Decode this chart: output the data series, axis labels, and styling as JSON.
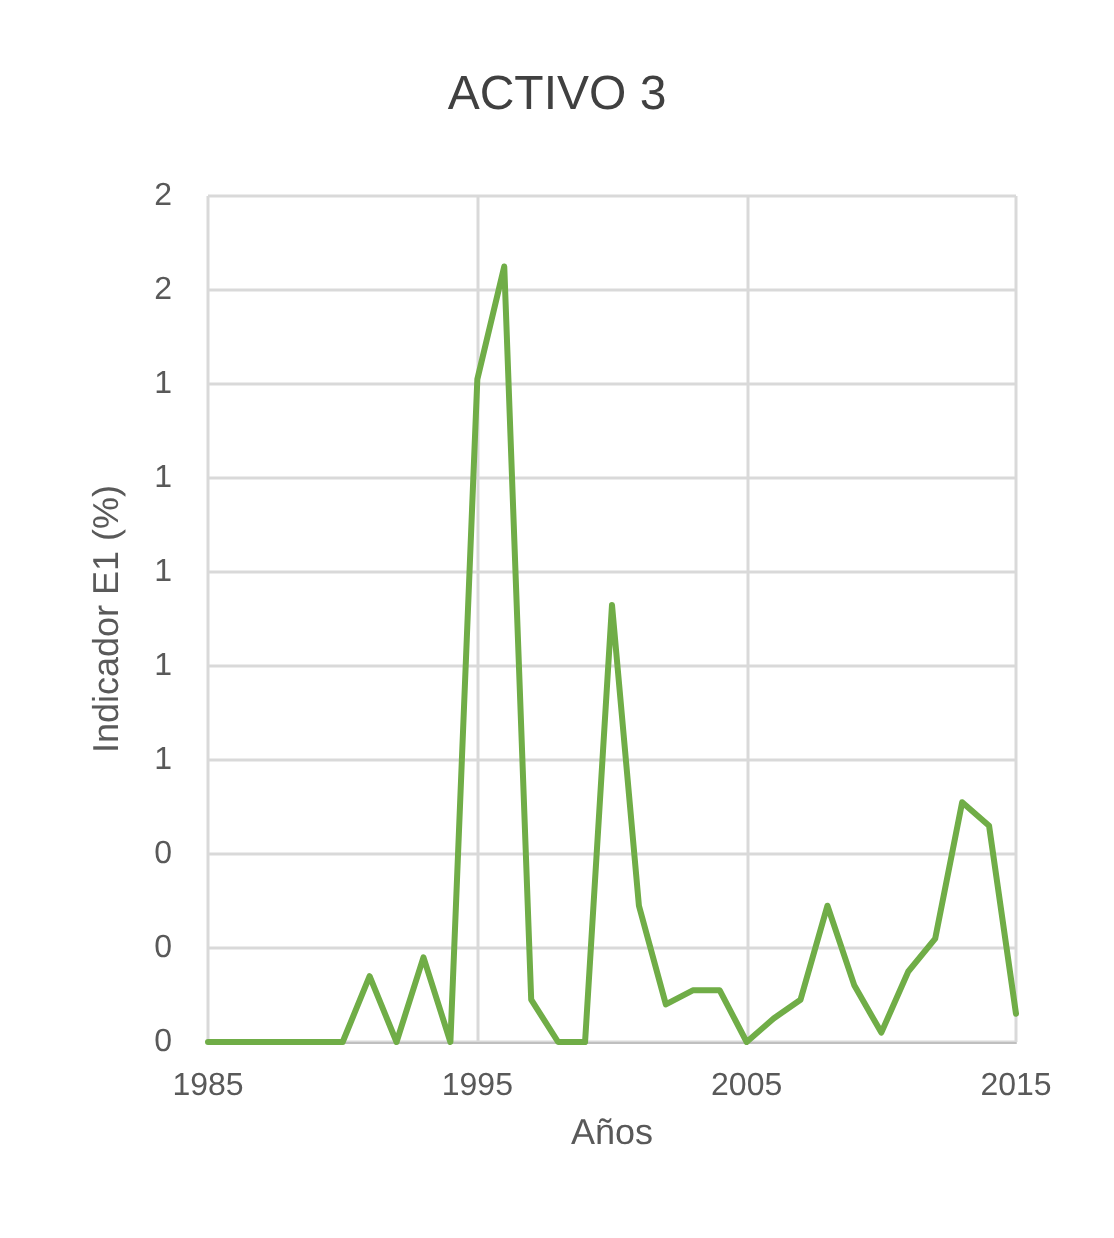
{
  "chart_data": {
    "type": "line",
    "title": "ACTIVO 3",
    "xlabel": "Años",
    "ylabel": "Indicador E1 (%)",
    "x": [
      1985,
      1986,
      1987,
      1988,
      1989,
      1990,
      1991,
      1992,
      1993,
      1994,
      1995,
      1996,
      1997,
      1998,
      1999,
      2000,
      2001,
      2002,
      2003,
      2004,
      2005,
      2006,
      2007,
      2008,
      2009,
      2010,
      2011,
      2012,
      2013,
      2014,
      2015
    ],
    "series": [
      {
        "color": "#70ad47",
        "values": [
          0,
          0,
          0,
          0,
          0,
          0,
          0.14,
          0,
          0.18,
          0,
          1.41,
          1.65,
          0.09,
          0,
          0,
          0.93,
          0.29,
          0.08,
          0.11,
          0.11,
          0,
          0.05,
          0.09,
          0.29,
          0.12,
          0.02,
          0.15,
          0.22,
          0.51,
          0.46,
          0.06
        ]
      }
    ],
    "xlim": [
      1985,
      2015
    ],
    "xticks": [
      1985,
      1995,
      2005,
      2015
    ],
    "ylim": [
      0,
      1.8
    ],
    "yticks": [
      0,
      {
        "value": 0.2,
        "label": "0"
      },
      {
        "value": 0.4,
        "label": "0"
      },
      {
        "value": 0.6,
        "label": "1"
      },
      {
        "value": 0.8,
        "label": "1"
      },
      1,
      {
        "value": 1.2,
        "label": "1"
      },
      {
        "value": 1.4,
        "label": "1"
      },
      {
        "value": 1.6,
        "label": "2"
      },
      {
        "value": 1.8,
        "label": "2"
      }
    ],
    "grid": true,
    "marker": "none",
    "line_style": "solid"
  }
}
